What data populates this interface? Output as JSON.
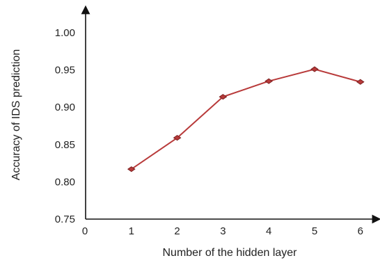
{
  "chart_data": {
    "type": "line",
    "title": "",
    "xlabel": "Number of the hidden layer",
    "ylabel": "Accuracy of IDS prediction",
    "x": [
      1,
      2,
      3,
      4,
      5,
      6
    ],
    "xticks": [
      "0",
      "1",
      "2",
      "3",
      "4",
      "5",
      "6"
    ],
    "yticks": [
      "0.75",
      "0.80",
      "0.85",
      "0.90",
      "0.95",
      "1.00"
    ],
    "xlim": [
      0,
      6.8
    ],
    "ylim": [
      0.75,
      1.0
    ],
    "grid": false,
    "series": [
      {
        "values": [
          0.817,
          0.859,
          0.914,
          0.935,
          0.951,
          0.934
        ],
        "color": "#b83a3a",
        "marker": "diamond"
      }
    ]
  }
}
